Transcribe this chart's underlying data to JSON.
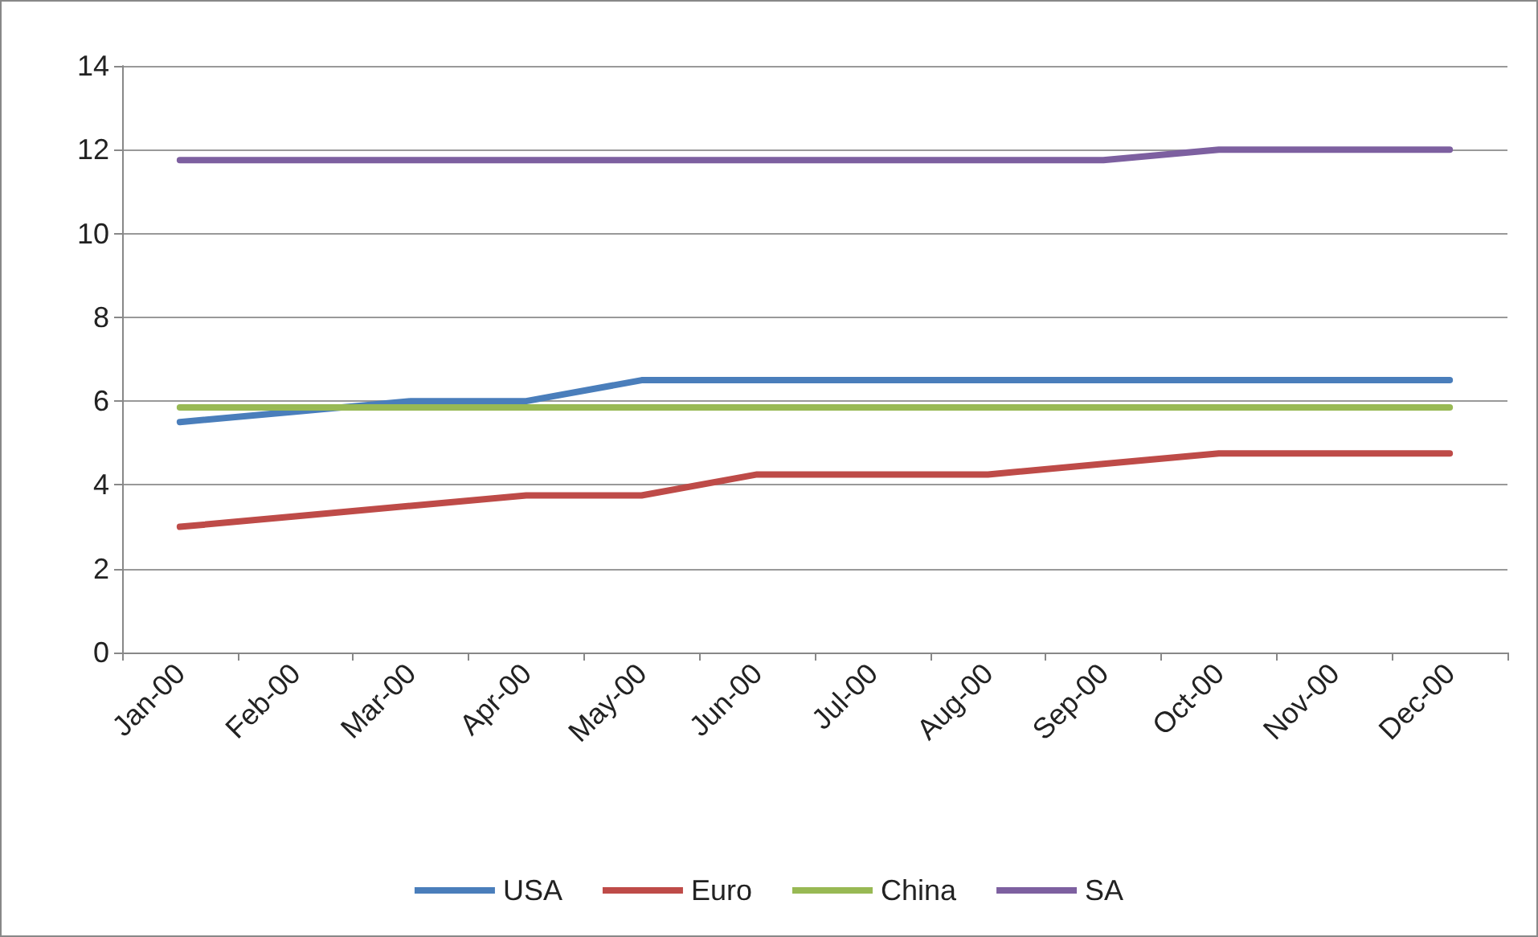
{
  "chart_data": {
    "type": "line",
    "categories": [
      "Jan-00",
      "Feb-00",
      "Mar-00",
      "Apr-00",
      "May-00",
      "Jun-00",
      "Jul-00",
      "Aug-00",
      "Sep-00",
      "Oct-00",
      "Nov-00",
      "Dec-00"
    ],
    "series": [
      {
        "name": "USA",
        "color": "#4a7ebb",
        "values": [
          5.5,
          5.75,
          6,
          6,
          6.5,
          6.5,
          6.5,
          6.5,
          6.5,
          6.5,
          6.5,
          6.5
        ]
      },
      {
        "name": "Euro",
        "color": "#be4b48",
        "values": [
          3,
          3.25,
          3.5,
          3.75,
          3.75,
          4.25,
          4.25,
          4.25,
          4.5,
          4.75,
          4.75,
          4.75
        ]
      },
      {
        "name": "China",
        "color": "#98b954",
        "values": [
          5.85,
          5.85,
          5.85,
          5.85,
          5.85,
          5.85,
          5.85,
          5.85,
          5.85,
          5.85,
          5.85,
          5.85
        ]
      },
      {
        "name": "SA",
        "color": "#7d60a0",
        "values": [
          11.75,
          11.75,
          11.75,
          11.75,
          11.75,
          11.75,
          11.75,
          11.75,
          11.75,
          12,
          12,
          12
        ]
      }
    ],
    "ylim": [
      0,
      14
    ],
    "yticks": [
      0,
      2,
      4,
      6,
      8,
      10,
      12,
      14
    ],
    "grid": "y",
    "legend": "bottom",
    "marker": "none",
    "line_style": "solid"
  }
}
